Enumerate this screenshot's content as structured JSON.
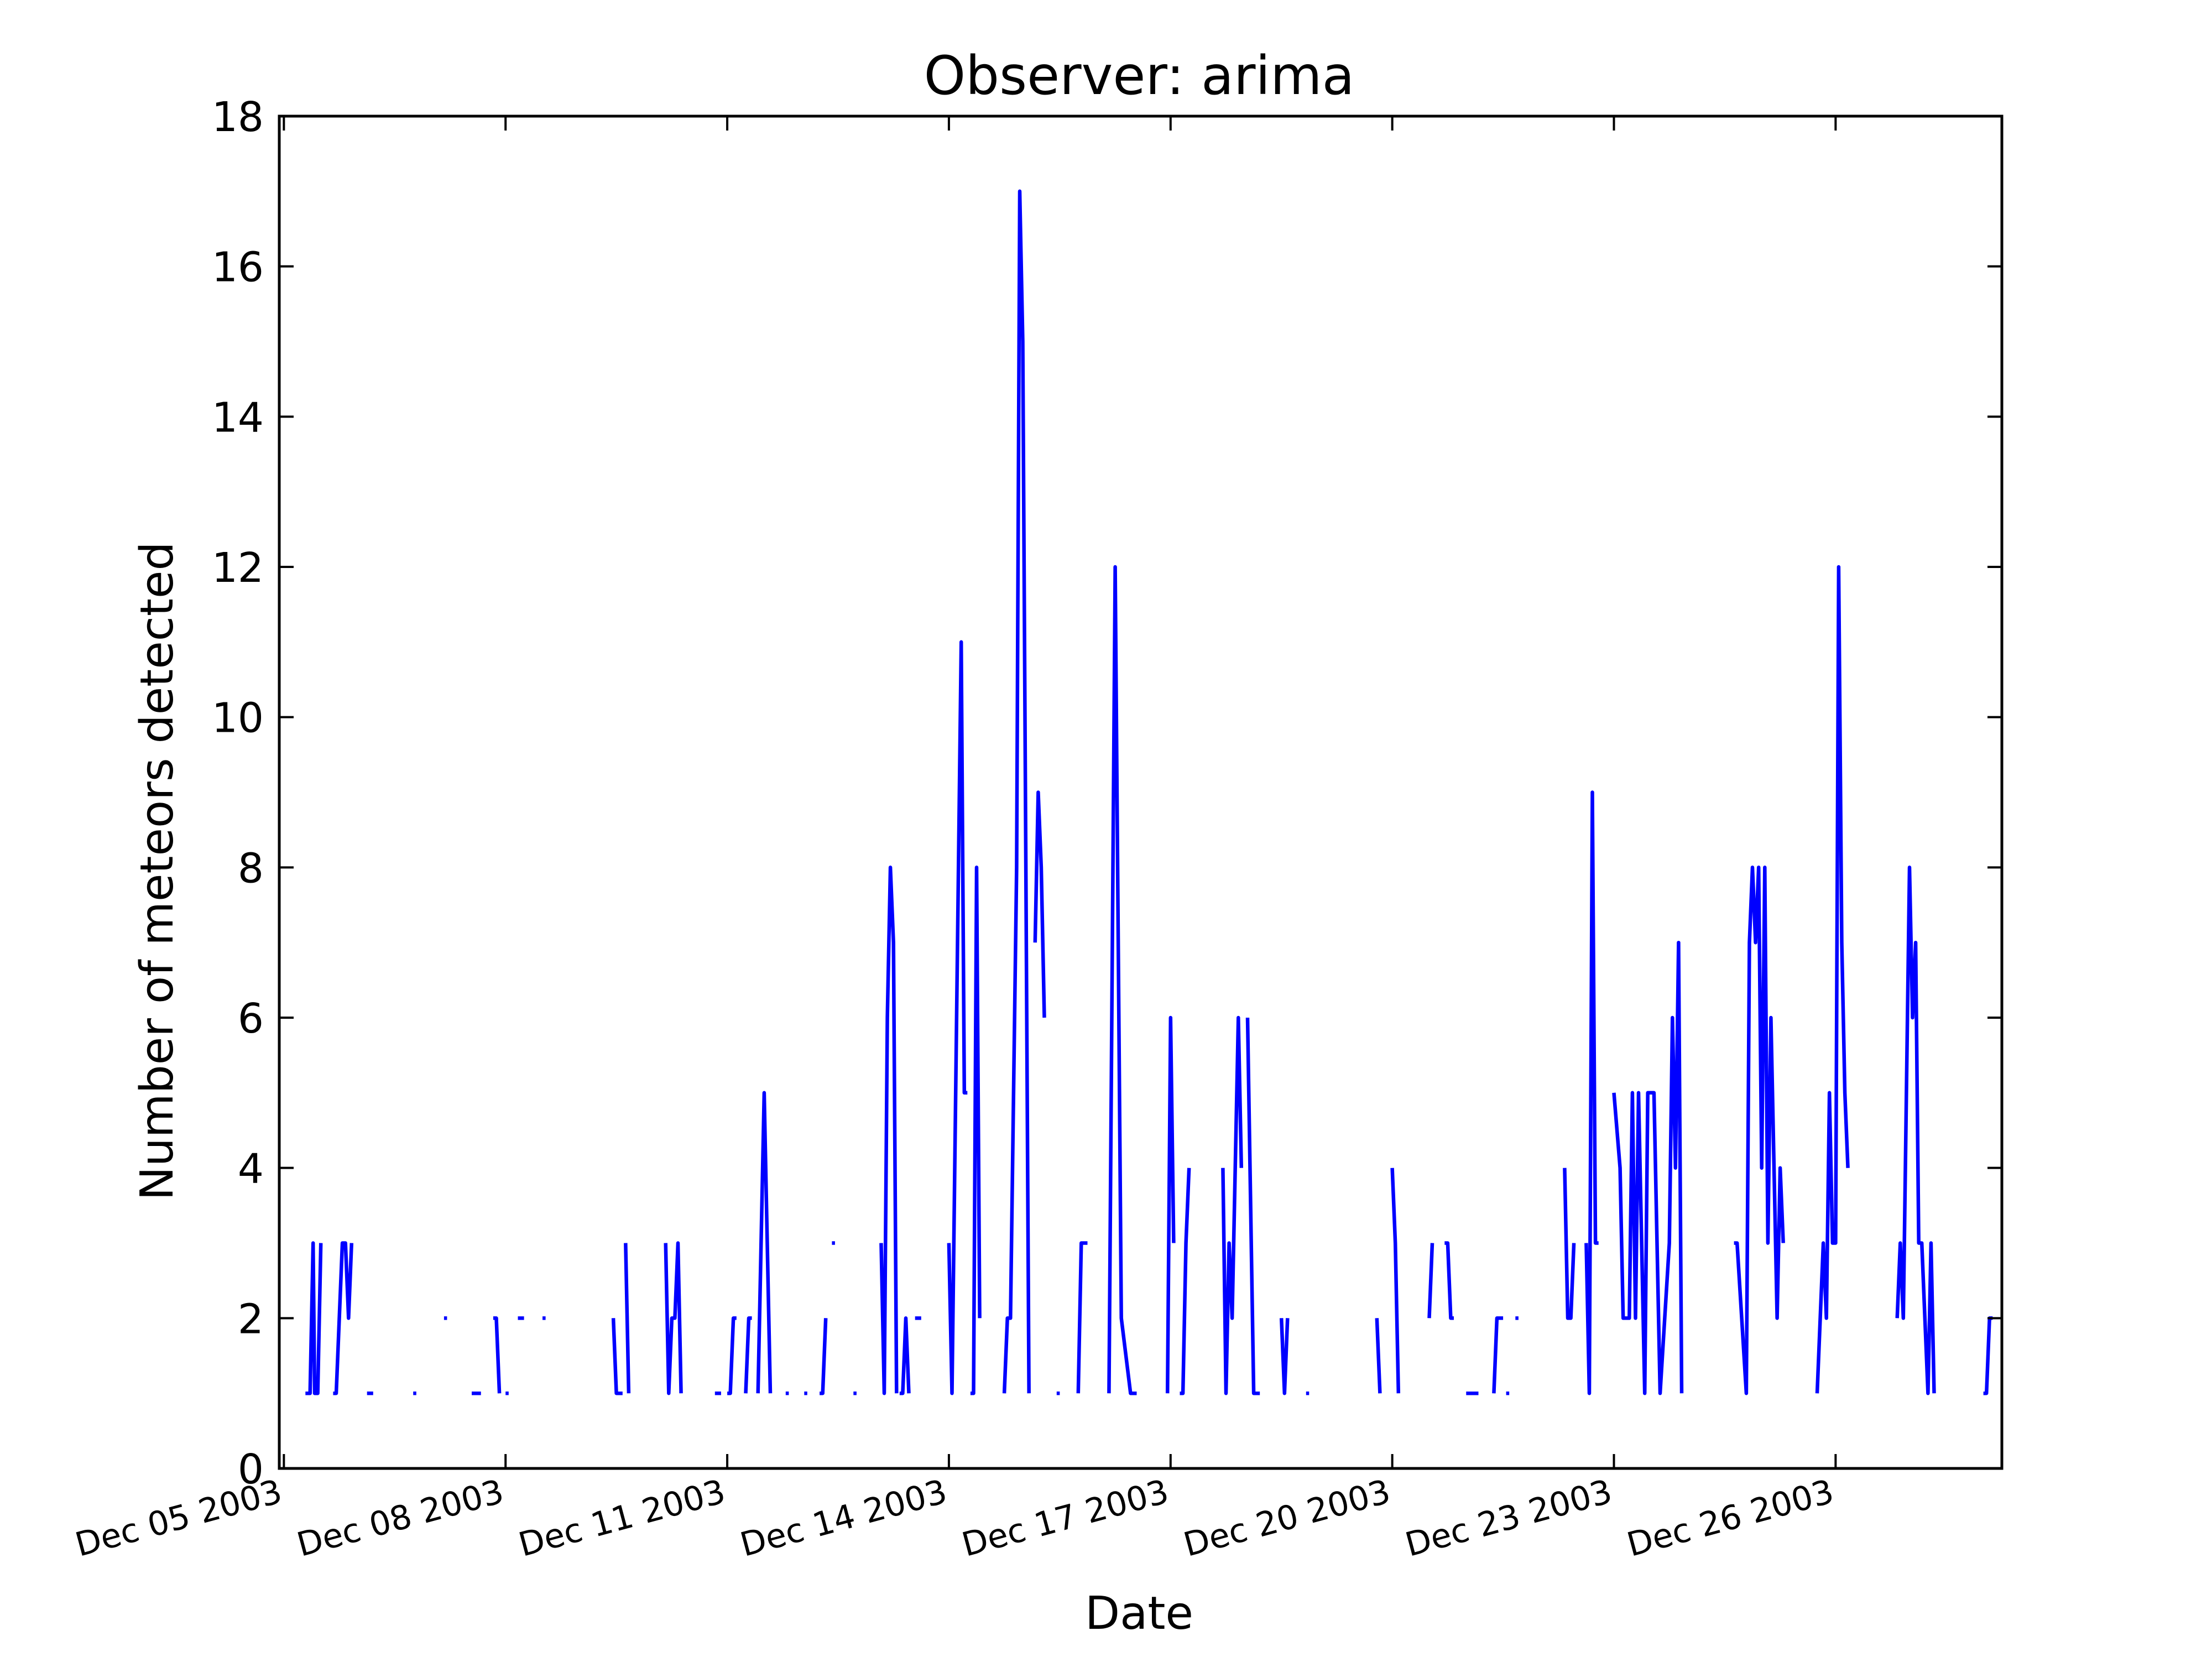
{
  "chart_data": {
    "type": "line",
    "title": "Observer: arima",
    "xlabel": "Date",
    "ylabel": "Number of meteors detected",
    "ylim": [
      0,
      18
    ],
    "xlim": [
      "2003-12-04T22:30",
      "2003-12-28T06:00"
    ],
    "x_ticks": [
      {
        "date": "2003-12-05",
        "label": "Dec 05 2003"
      },
      {
        "date": "2003-12-08",
        "label": "Dec 08 2003"
      },
      {
        "date": "2003-12-11",
        "label": "Dec 11 2003"
      },
      {
        "date": "2003-12-14",
        "label": "Dec 14 2003"
      },
      {
        "date": "2003-12-17",
        "label": "Dec 17 2003"
      },
      {
        "date": "2003-12-20",
        "label": "Dec 20 2003"
      },
      {
        "date": "2003-12-23",
        "label": "Dec 23 2003"
      },
      {
        "date": "2003-12-26",
        "label": "Dec 26 2003"
      }
    ],
    "y_ticks": [
      0,
      2,
      4,
      6,
      8,
      10,
      12,
      14,
      16,
      18
    ],
    "grid": false,
    "line_color": "#0000ff",
    "segments": [
      [
        [
          "2003-12-05T07:00",
          1
        ],
        [
          "2003-12-05T08:30",
          1
        ],
        [
          "2003-12-05T09:30",
          3
        ],
        [
          "2003-12-05T10:00",
          1
        ],
        [
          "2003-12-05T11:00",
          1
        ],
        [
          "2003-12-05T12:00",
          3
        ]
      ],
      [
        [
          "2003-12-05T16:00",
          1
        ],
        [
          "2003-12-05T17:00",
          1
        ],
        [
          "2003-12-05T19:00",
          3
        ],
        [
          "2003-12-05T20:00",
          3
        ],
        [
          "2003-12-05T21:00",
          2
        ],
        [
          "2003-12-05T22:00",
          3
        ]
      ],
      [
        [
          "2003-12-06T03:00",
          1
        ],
        [
          "2003-12-06T05:00",
          1
        ]
      ],
      [
        [
          "2003-12-06T18:00",
          1
        ],
        [
          "2003-12-06T19:00",
          1
        ]
      ],
      [
        [
          "2003-12-07T04:00",
          2
        ],
        [
          "2003-12-07T05:00",
          2
        ]
      ],
      [
        [
          "2003-12-07T13:00",
          1
        ],
        [
          "2003-12-07T16:00",
          1
        ]
      ],
      [
        [
          "2003-12-07T20:00",
          2
        ],
        [
          "2003-12-07T21:00",
          2
        ],
        [
          "2003-12-07T22:00",
          1
        ]
      ],
      [
        [
          "2003-12-08T00:00",
          1
        ],
        [
          "2003-12-08T01:00",
          1
        ]
      ],
      [
        [
          "2003-12-08T04:00",
          2
        ],
        [
          "2003-12-08T06:00",
          2
        ]
      ],
      [
        [
          "2003-12-08T12:00",
          2
        ],
        [
          "2003-12-08T13:00",
          2
        ]
      ],
      [
        [
          "2003-12-09T11:00",
          2
        ],
        [
          "2003-12-09T12:00",
          1
        ],
        [
          "2003-12-09T14:00",
          1
        ]
      ],
      [
        [
          "2003-12-09T15:00",
          3
        ],
        [
          "2003-12-09T16:00",
          1
        ]
      ],
      [
        [
          "2003-12-10T04:00",
          3
        ],
        [
          "2003-12-10T05:00",
          1
        ],
        [
          "2003-12-10T06:00",
          2
        ],
        [
          "2003-12-10T07:00",
          2
        ],
        [
          "2003-12-10T08:00",
          3
        ],
        [
          "2003-12-10T09:00",
          1
        ]
      ],
      [
        [
          "2003-12-10T20:00",
          1
        ],
        [
          "2003-12-10T22:00",
          1
        ]
      ],
      [
        [
          "2003-12-11T00:00",
          1
        ],
        [
          "2003-12-11T01:00",
          1
        ],
        [
          "2003-12-11T02:00",
          2
        ],
        [
          "2003-12-11T03:00",
          2
        ]
      ],
      [
        [
          "2003-12-11T06:00",
          1
        ],
        [
          "2003-12-11T07:00",
          2
        ],
        [
          "2003-12-11T08:00",
          2
        ]
      ],
      [
        [
          "2003-12-11T10:00",
          1
        ],
        [
          "2003-12-11T12:00",
          5
        ],
        [
          "2003-12-11T14:00",
          1
        ]
      ],
      [
        [
          "2003-12-11T19:00",
          1
        ],
        [
          "2003-12-11T20:00",
          1
        ]
      ],
      [
        [
          "2003-12-12T01:00",
          1
        ],
        [
          "2003-12-12T02:00",
          1
        ]
      ],
      [
        [
          "2003-12-12T06:00",
          1
        ],
        [
          "2003-12-12T07:00",
          1
        ],
        [
          "2003-12-12T08:00",
          2
        ]
      ],
      [
        [
          "2003-12-12T10:00",
          3
        ],
        [
          "2003-12-12T11:00",
          3
        ]
      ],
      [
        [
          "2003-12-12T17:00",
          1
        ],
        [
          "2003-12-12T18:00",
          1
        ]
      ],
      [
        [
          "2003-12-13T02:00",
          3
        ],
        [
          "2003-12-13T03:00",
          1
        ],
        [
          "2003-12-13T04:00",
          6
        ],
        [
          "2003-12-13T05:00",
          8
        ],
        [
          "2003-12-13T06:00",
          7
        ],
        [
          "2003-12-13T07:00",
          1
        ]
      ],
      [
        [
          "2003-12-13T08:00",
          1
        ],
        [
          "2003-12-13T09:00",
          1
        ],
        [
          "2003-12-13T10:00",
          2
        ],
        [
          "2003-12-13T11:00",
          1
        ]
      ],
      [
        [
          "2003-12-13T13:00",
          2
        ],
        [
          "2003-12-13T15:00",
          2
        ]
      ],
      [
        [
          "2003-12-14T00:00",
          3
        ],
        [
          "2003-12-14T01:00",
          1
        ],
        [
          "2003-12-14T04:00",
          11
        ],
        [
          "2003-12-14T05:00",
          5
        ],
        [
          "2003-12-14T06:00",
          5
        ]
      ],
      [
        [
          "2003-12-14T07:00",
          1
        ],
        [
          "2003-12-14T08:00",
          1
        ],
        [
          "2003-12-14T09:00",
          8
        ],
        [
          "2003-12-14T10:00",
          2
        ]
      ],
      [
        [
          "2003-12-14T18:00",
          1
        ],
        [
          "2003-12-14T19:00",
          2
        ],
        [
          "2003-12-14T20:00",
          2
        ],
        [
          "2003-12-14T22:00",
          8
        ],
        [
          "2003-12-14T23:00",
          17
        ],
        [
          "2003-12-15T00:00",
          15
        ],
        [
          "2003-12-15T02:00",
          1
        ]
      ],
      [
        [
          "2003-12-15T04:00",
          7
        ],
        [
          "2003-12-15T05:00",
          9
        ],
        [
          "2003-12-15T06:00",
          8
        ],
        [
          "2003-12-15T07:00",
          6
        ]
      ],
      [
        [
          "2003-12-15T11:00",
          1
        ],
        [
          "2003-12-15T12:00",
          1
        ]
      ],
      [
        [
          "2003-12-15T18:00",
          1
        ],
        [
          "2003-12-15T19:00",
          3
        ],
        [
          "2003-12-15T21:00",
          3
        ]
      ],
      [
        [
          "2003-12-16T04:00",
          1
        ],
        [
          "2003-12-16T06:00",
          12
        ],
        [
          "2003-12-16T08:00",
          2
        ],
        [
          "2003-12-16T11:00",
          1
        ],
        [
          "2003-12-16T13:00",
          1
        ]
      ],
      [
        [
          "2003-12-16T23:00",
          1
        ],
        [
          "2003-12-17T00:00",
          6
        ],
        [
          "2003-12-17T01:00",
          3
        ]
      ],
      [
        [
          "2003-12-17T03:00",
          1
        ],
        [
          "2003-12-17T04:00",
          1
        ],
        [
          "2003-12-17T05:00",
          3
        ],
        [
          "2003-12-17T06:00",
          4
        ]
      ],
      [
        [
          "2003-12-17T17:00",
          4
        ],
        [
          "2003-12-17T18:00",
          1
        ],
        [
          "2003-12-17T19:00",
          3
        ],
        [
          "2003-12-17T20:00",
          2
        ],
        [
          "2003-12-17T22:00",
          6
        ],
        [
          "2003-12-17T23:00",
          4
        ]
      ],
      [
        [
          "2003-12-18T01:00",
          6
        ],
        [
          "2003-12-18T03:00",
          1
        ],
        [
          "2003-12-18T05:00",
          1
        ]
      ],
      [
        [
          "2003-12-18T12:00",
          2
        ],
        [
          "2003-12-18T13:00",
          1
        ],
        [
          "2003-12-18T14:00",
          2
        ]
      ],
      [
        [
          "2003-12-18T20:00",
          1
        ],
        [
          "2003-12-18T21:00",
          1
        ]
      ],
      [
        [
          "2003-12-19T19:00",
          2
        ],
        [
          "2003-12-19T20:00",
          1
        ]
      ],
      [
        [
          "2003-12-20T00:00",
          4
        ],
        [
          "2003-12-20T01:00",
          3
        ],
        [
          "2003-12-20T02:00",
          1
        ]
      ],
      [
        [
          "2003-12-20T12:00",
          2
        ],
        [
          "2003-12-20T13:00",
          3
        ]
      ],
      [
        [
          "2003-12-20T17:00",
          3
        ],
        [
          "2003-12-20T18:00",
          3
        ],
        [
          "2003-12-20T19:00",
          2
        ],
        [
          "2003-12-20T20:00",
          2
        ]
      ],
      [
        [
          "2003-12-21T00:00",
          1
        ],
        [
          "2003-12-21T04:00",
          1
        ]
      ],
      [
        [
          "2003-12-21T09:00",
          1
        ],
        [
          "2003-12-21T10:00",
          2
        ],
        [
          "2003-12-21T12:00",
          2
        ]
      ],
      [
        [
          "2003-12-21T13:00",
          1
        ],
        [
          "2003-12-21T14:00",
          1
        ]
      ],
      [
        [
          "2003-12-21T16:00",
          2
        ],
        [
          "2003-12-21T17:00",
          2
        ]
      ],
      [
        [
          "2003-12-22T08:00",
          4
        ],
        [
          "2003-12-22T09:00",
          2
        ],
        [
          "2003-12-22T10:00",
          2
        ],
        [
          "2003-12-22T11:00",
          3
        ]
      ],
      [
        [
          "2003-12-22T15:00",
          3
        ],
        [
          "2003-12-22T16:00",
          1
        ],
        [
          "2003-12-22T17:00",
          9
        ],
        [
          "2003-12-22T18:00",
          3
        ],
        [
          "2003-12-22T19:00",
          3
        ]
      ],
      [
        [
          "2003-12-23T00:00",
          5
        ],
        [
          "2003-12-23T02:00",
          4
        ],
        [
          "2003-12-23T03:00",
          2
        ],
        [
          "2003-12-23T05:00",
          2
        ],
        [
          "2003-12-23T06:00",
          5
        ],
        [
          "2003-12-23T07:00",
          2
        ],
        [
          "2003-12-23T08:00",
          5
        ],
        [
          "2003-12-23T10:00",
          1
        ],
        [
          "2003-12-23T11:00",
          5
        ],
        [
          "2003-12-23T13:00",
          5
        ],
        [
          "2003-12-23T15:00",
          1
        ],
        [
          "2003-12-23T18:00",
          3
        ],
        [
          "2003-12-23T19:00",
          6
        ],
        [
          "2003-12-23T20:00",
          4
        ],
        [
          "2003-12-23T21:00",
          7
        ],
        [
          "2003-12-23T22:00",
          1
        ]
      ],
      [
        [
          "2003-12-24T15:00",
          3
        ],
        [
          "2003-12-24T16:00",
          3
        ],
        [
          "2003-12-24T19:00",
          1
        ],
        [
          "2003-12-24T20:00",
          7
        ],
        [
          "2003-12-24T21:00",
          8
        ],
        [
          "2003-12-24T22:00",
          7
        ],
        [
          "2003-12-24T23:00",
          8
        ],
        [
          "2003-12-25T00:00",
          4
        ],
        [
          "2003-12-25T01:00",
          8
        ],
        [
          "2003-12-25T02:00",
          3
        ],
        [
          "2003-12-25T03:00",
          6
        ],
        [
          "2003-12-25T04:00",
          4
        ],
        [
          "2003-12-25T05:00",
          2
        ],
        [
          "2003-12-25T06:00",
          4
        ],
        [
          "2003-12-25T07:00",
          3
        ]
      ],
      [
        [
          "2003-12-25T18:00",
          1
        ],
        [
          "2003-12-25T20:00",
          3
        ],
        [
          "2003-12-25T21:00",
          2
        ],
        [
          "2003-12-25T22:00",
          5
        ],
        [
          "2003-12-25T23:00",
          3
        ],
        [
          "2003-12-26T00:00",
          3
        ],
        [
          "2003-12-26T01:00",
          12
        ],
        [
          "2003-12-26T02:00",
          7
        ],
        [
          "2003-12-26T03:00",
          5
        ],
        [
          "2003-12-26T04:00",
          4
        ]
      ],
      [
        [
          "2003-12-26T20:00",
          2
        ],
        [
          "2003-12-26T21:00",
          3
        ],
        [
          "2003-12-26T22:00",
          2
        ],
        [
          "2003-12-27T00:00",
          8
        ],
        [
          "2003-12-27T01:00",
          6
        ],
        [
          "2003-12-27T02:00",
          7
        ],
        [
          "2003-12-27T03:00",
          3
        ],
        [
          "2003-12-27T04:00",
          3
        ],
        [
          "2003-12-27T06:00",
          1
        ],
        [
          "2003-12-27T07:00",
          3
        ],
        [
          "2003-12-27T08:00",
          1
        ]
      ],
      [
        [
          "2003-12-28T00:00",
          1
        ],
        [
          "2003-12-28T01:00",
          1
        ],
        [
          "2003-12-28T02:00",
          2
        ],
        [
          "2003-12-28T03:00",
          2
        ]
      ]
    ]
  }
}
